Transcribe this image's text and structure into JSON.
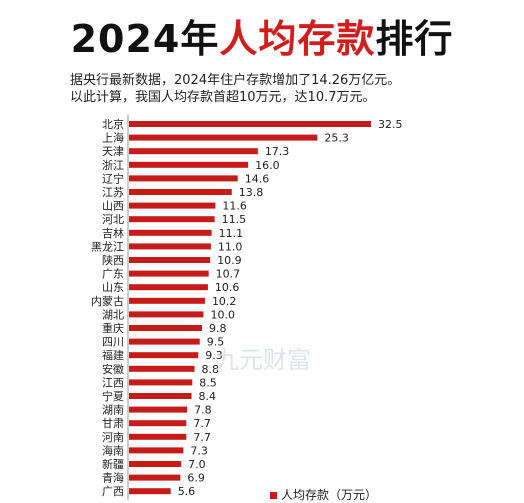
{
  "page": {
    "title_part1": "2024年",
    "title_part2": "人均存款",
    "title_part3": "排行",
    "note_line1": "据央行最新数据，2024年住户存款增加了14.26万亿元。",
    "note_line2": "以此计算，我国人均存款首超10万元，达10.7万元。",
    "watermark": "九元财富"
  },
  "colors": {
    "bar": "#c41b1b",
    "title_red": "#d01e1e"
  },
  "chart_data": {
    "type": "bar",
    "orientation": "horizontal",
    "title": "2024年人均存款排行",
    "categories": [
      "北京",
      "上海",
      "天津",
      "浙江",
      "辽宁",
      "江苏",
      "山西",
      "河北",
      "吉林",
      "黑龙江",
      "陕西",
      "广东",
      "山东",
      "内蒙古",
      "湖北",
      "重庆",
      "四川",
      "福建",
      "安徽",
      "江西",
      "宁夏",
      "湖南",
      "甘肃",
      "河南",
      "海南",
      "新疆",
      "青海",
      "广西"
    ],
    "series": [
      {
        "name": "人均存款（万元）",
        "values": [
          32.5,
          25.3,
          17.3,
          16.0,
          14.6,
          13.8,
          11.6,
          11.5,
          11.1,
          11.0,
          10.9,
          10.7,
          10.6,
          10.2,
          10.0,
          9.8,
          9.5,
          9.3,
          8.8,
          8.5,
          8.4,
          7.8,
          7.7,
          7.7,
          7.3,
          7.0,
          6.9,
          5.6
        ],
        "labels": [
          "32.5",
          "25.3",
          "17.3",
          "16.0",
          "14.6",
          "13.8",
          "11.6",
          "11.5",
          "11.1",
          "11.0",
          "10.9",
          "10.7",
          "10.6",
          "10.2",
          "10.0",
          "9.8",
          "9.5",
          "9.3",
          "8.8",
          "8.5",
          "8.4",
          "7.8",
          "7.7",
          "7.7",
          "7.3",
          "7.0",
          "6.9",
          "5.6"
        ]
      }
    ],
    "legend": "bottom-right",
    "grid": false
  }
}
